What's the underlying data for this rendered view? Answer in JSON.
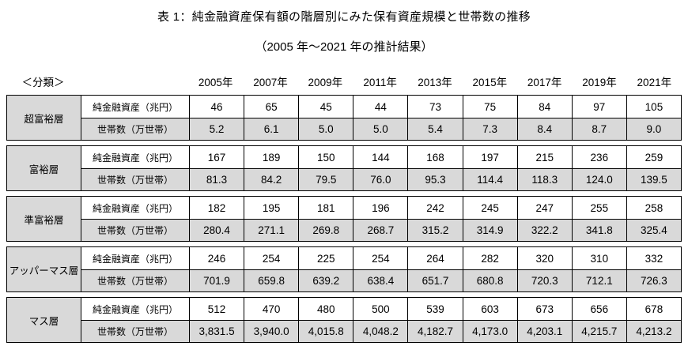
{
  "title": "表 1：純金融資産保有額の階層別にみた保有資産規模と世帯数の推移",
  "subtitle": "（2005 年～2021 年の推計結果）",
  "classification_label": "＜分類＞",
  "colors": {
    "shaded_cell": "#d9d9d9",
    "border": "#000000",
    "background": "#ffffff",
    "text": "#000000"
  },
  "chart_data": {
    "type": "table",
    "title": "表 1：純金融資産保有額の階層別にみた保有資産規模と世帯数の推移",
    "subtitle": "（2005 年～2021 年の推計結果）",
    "columns": [
      "2005年",
      "2007年",
      "2009年",
      "2011年",
      "2013年",
      "2015年",
      "2017年",
      "2019年",
      "2021年"
    ],
    "row_labels": {
      "assets": "純金融資産（兆円）",
      "households": "世帯数（万世帯）"
    },
    "tiers": [
      {
        "name": "超富裕層",
        "assets": [
          "46",
          "65",
          "45",
          "44",
          "73",
          "75",
          "84",
          "97",
          "105"
        ],
        "households": [
          "5.2",
          "6.1",
          "5.0",
          "5.0",
          "5.4",
          "7.3",
          "8.4",
          "8.7",
          "9.0"
        ]
      },
      {
        "name": "富裕層",
        "assets": [
          "167",
          "189",
          "150",
          "144",
          "168",
          "197",
          "215",
          "236",
          "259"
        ],
        "households": [
          "81.3",
          "84.2",
          "79.5",
          "76.0",
          "95.3",
          "114.4",
          "118.3",
          "124.0",
          "139.5"
        ]
      },
      {
        "name": "準富裕層",
        "assets": [
          "182",
          "195",
          "181",
          "196",
          "242",
          "245",
          "247",
          "255",
          "258"
        ],
        "households": [
          "280.4",
          "271.1",
          "269.8",
          "268.7",
          "315.2",
          "314.9",
          "322.2",
          "341.8",
          "325.4"
        ]
      },
      {
        "name": "アッパーマス層",
        "assets": [
          "246",
          "254",
          "225",
          "254",
          "264",
          "282",
          "320",
          "310",
          "332"
        ],
        "households": [
          "701.9",
          "659.8",
          "639.2",
          "638.4",
          "651.7",
          "680.8",
          "720.3",
          "712.1",
          "726.3"
        ]
      },
      {
        "name": "マス層",
        "assets": [
          "512",
          "470",
          "480",
          "500",
          "539",
          "603",
          "673",
          "656",
          "678"
        ],
        "households": [
          "3,831.5",
          "3,940.0",
          "4,015.8",
          "4,048.2",
          "4,182.7",
          "4,173.0",
          "4,203.1",
          "4,215.7",
          "4,213.2"
        ]
      }
    ]
  }
}
